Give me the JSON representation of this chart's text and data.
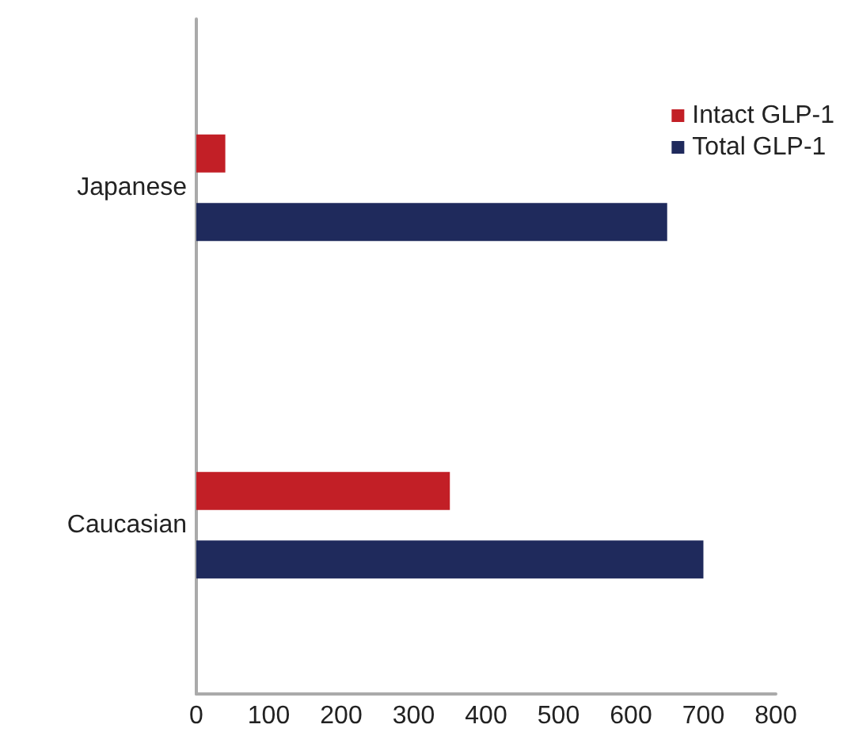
{
  "chart_data": {
    "type": "bar",
    "orientation": "horizontal",
    "categories": [
      "Japanese",
      "Caucasian"
    ],
    "series": [
      {
        "name": "Intact GLP-1",
        "color": "#c21f26",
        "values": [
          40,
          350
        ]
      },
      {
        "name": "Total GLP-1",
        "color": "#1f2a5c",
        "values": [
          650,
          700
        ]
      }
    ],
    "xlim": [
      0,
      800
    ],
    "xticks": [
      0,
      100,
      200,
      300,
      400,
      500,
      600,
      700,
      800
    ],
    "grid": false,
    "legend": "top right"
  }
}
